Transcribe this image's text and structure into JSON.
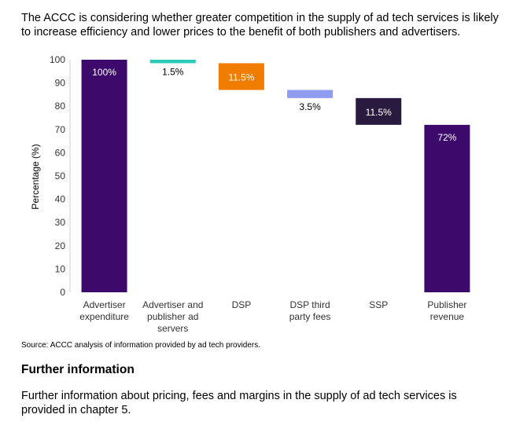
{
  "intro_text": "The ACCC is considering whether greater competition in the supply of ad tech services is likely to increase efficiency and lower prices to the benefit of both publishers and advertisers.",
  "chart_data": {
    "type": "bar",
    "subtype": "waterfall",
    "ylabel": "Percentage (%)",
    "xlabel": "",
    "ylim": [
      0,
      100
    ],
    "yticks": [
      0,
      10,
      20,
      30,
      40,
      50,
      60,
      70,
      80,
      90,
      100
    ],
    "grid": false,
    "categories": [
      [
        "Advertiser",
        "expenditure"
      ],
      [
        "Advertiser and",
        "publisher ad",
        "servers"
      ],
      [
        "DSP"
      ],
      [
        "DSP third",
        "party fees"
      ],
      [
        "SSP"
      ],
      [
        "Publisher",
        "revenue"
      ]
    ],
    "bars": [
      {
        "base": 0,
        "top": 100,
        "label": "100%",
        "color": "#3b0a6b",
        "label_color": "#ffffff",
        "label_position": "inside-top"
      },
      {
        "base": 98.5,
        "top": 100,
        "label": "1.5%",
        "color": "#2bc9b8",
        "label_color": "#000000",
        "label_position": "below"
      },
      {
        "base": 87,
        "top": 98.5,
        "label": "11.5%",
        "color": "#f07d00",
        "label_color": "#ffffff",
        "label_position": "inside-center"
      },
      {
        "base": 83.5,
        "top": 87,
        "label": "3.5%",
        "color": "#8f9cf0",
        "label_color": "#000000",
        "label_position": "below"
      },
      {
        "base": 72,
        "top": 83.5,
        "label": "11.5%",
        "color": "#2a1a3f",
        "label_color": "#ffffff",
        "label_position": "inside-center"
      },
      {
        "base": 0,
        "top": 72,
        "label": "72%",
        "color": "#3b0a6b",
        "label_color": "#ffffff",
        "label_position": "inside-top"
      }
    ],
    "values": [
      100,
      1.5,
      11.5,
      3.5,
      11.5,
      72
    ]
  },
  "source_text": "Source:  ACCC analysis of information provided by ad tech providers.",
  "further_heading": "Further information",
  "further_text": "Further information about pricing, fees and margins in the supply of ad tech services is provided in chapter 5."
}
